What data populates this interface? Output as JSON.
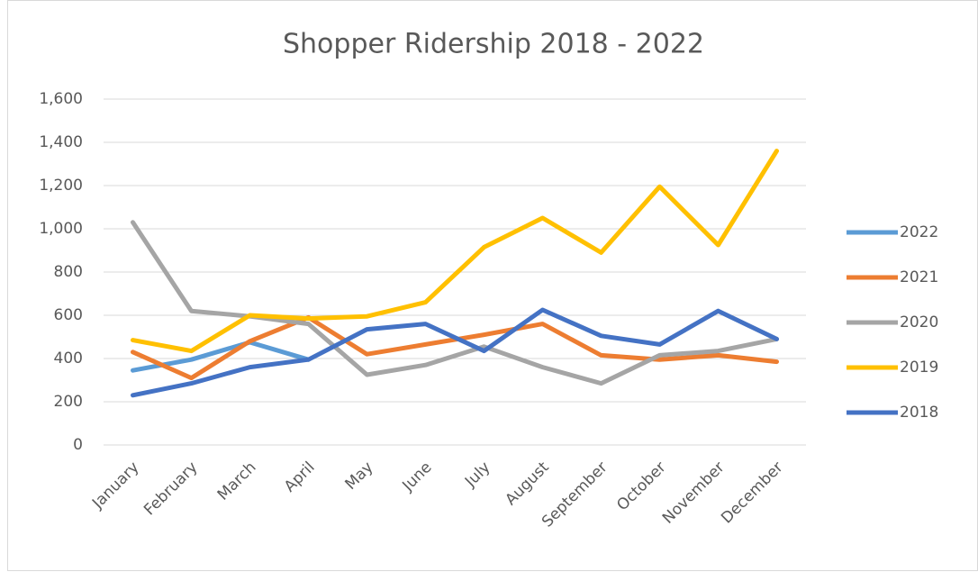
{
  "chart_data": {
    "type": "line",
    "title": "Shopper Ridership 2018 - 2022",
    "categories": [
      "January",
      "February",
      "March",
      "April",
      "May",
      "June",
      "July",
      "August",
      "September",
      "October",
      "November",
      "December"
    ],
    "series": [
      {
        "name": "2022",
        "color": "#5b9bd5",
        "values": [
          345,
          395,
          475,
          395,
          null,
          null,
          null,
          null,
          null,
          null,
          null,
          null
        ]
      },
      {
        "name": "2021",
        "color": "#ed7d31",
        "values": [
          430,
          310,
          480,
          590,
          420,
          465,
          510,
          560,
          415,
          395,
          415,
          385
        ]
      },
      {
        "name": "2020",
        "color": "#a5a5a5",
        "values": [
          1030,
          620,
          595,
          560,
          325,
          370,
          455,
          360,
          285,
          415,
          435,
          490
        ]
      },
      {
        "name": "2019",
        "color": "#ffc000",
        "values": [
          485,
          435,
          600,
          585,
          595,
          660,
          915,
          1050,
          890,
          1195,
          925,
          1360
        ]
      },
      {
        "name": "2018",
        "color": "#4472c4",
        "values": [
          230,
          285,
          360,
          395,
          535,
          560,
          435,
          625,
          505,
          465,
          620,
          490
        ]
      }
    ],
    "ylim": [
      0,
      1600
    ],
    "yticks": [
      0,
      200,
      400,
      600,
      800,
      {
        "value": 1000,
        "label": "1,000"
      },
      {
        "value": 1200,
        "label": "1,200"
      },
      {
        "value": 1400,
        "label": "1,400"
      },
      {
        "value": 1600,
        "label": "1,600"
      }
    ],
    "grid": true,
    "legend": "right"
  }
}
